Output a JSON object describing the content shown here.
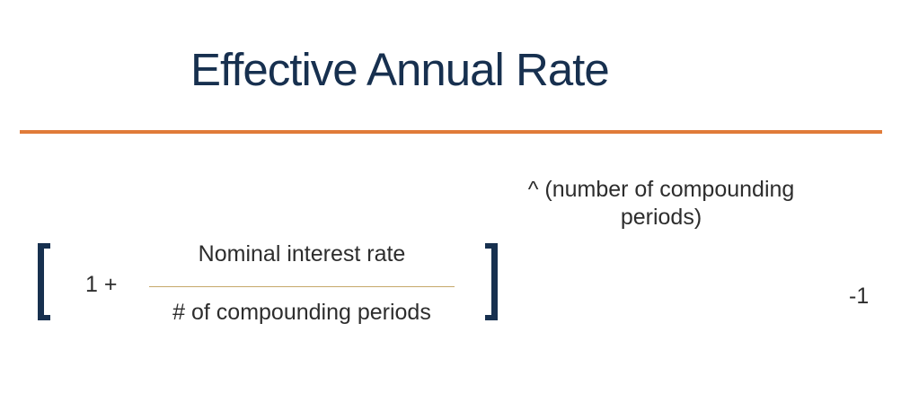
{
  "title": "Effective Annual Rate",
  "formula": {
    "exponent": "^ (number of compounding periods)",
    "prefix": "1 +",
    "numerator": "Nominal interest rate",
    "denominator": "# of compounding periods",
    "suffix": "-1"
  },
  "colors": {
    "title": "#17304f",
    "accent": "#e07b39",
    "fraction_line": "#c6a96b",
    "body_text": "#2d2d2d"
  }
}
